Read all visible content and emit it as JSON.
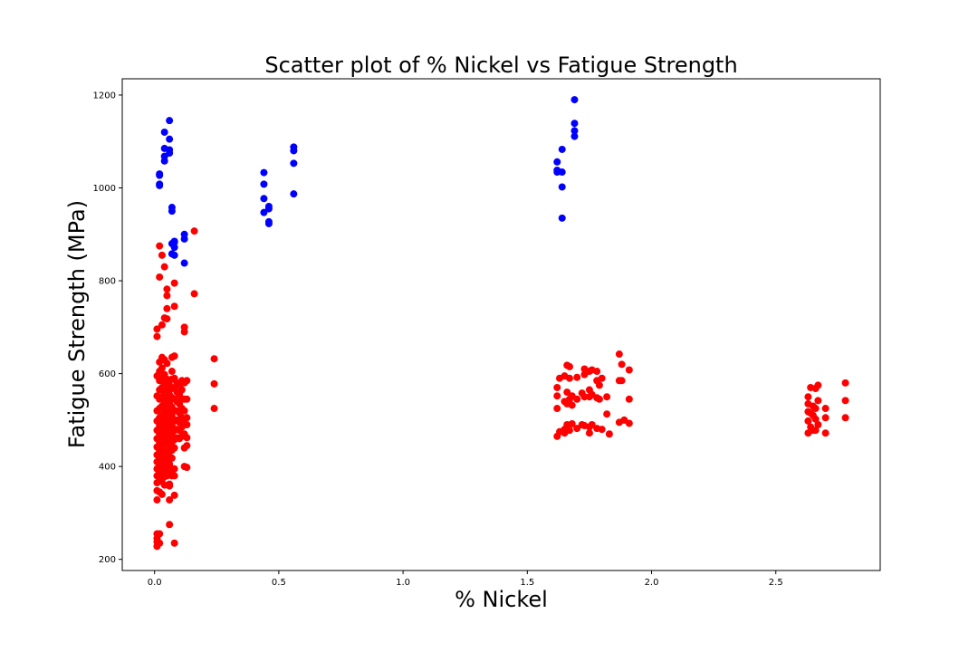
{
  "chart_data": {
    "type": "scatter",
    "title": "Scatter plot of % Nickel vs Fatigue Strength",
    "xlabel": "% Nickel",
    "ylabel": "Fatigue Strength (MPa)",
    "xlim": [
      -0.13,
      2.92
    ],
    "ylim": [
      176,
      1235
    ],
    "x_ticks": [
      "0.0",
      "0.5",
      "1.0",
      "1.5",
      "2.0",
      "2.5"
    ],
    "y_ticks": [
      "200",
      "400",
      "600",
      "800",
      "1000",
      "1200"
    ],
    "grid": false,
    "legend": "none",
    "series": [
      {
        "color": "#0000ff",
        "points": [
          [
            0.02,
            1030
          ],
          [
            0.02,
            1027
          ],
          [
            0.02,
            1008
          ],
          [
            0.02,
            1005
          ],
          [
            0.04,
            1120
          ],
          [
            0.04,
            1085
          ],
          [
            0.04,
            1068
          ],
          [
            0.04,
            1058
          ],
          [
            0.06,
            1145
          ],
          [
            0.06,
            1105
          ],
          [
            0.06,
            1082
          ],
          [
            0.06,
            1075
          ],
          [
            0.07,
            958
          ],
          [
            0.07,
            950
          ],
          [
            0.07,
            880
          ],
          [
            0.07,
            858
          ],
          [
            0.08,
            885
          ],
          [
            0.08,
            883
          ],
          [
            0.08,
            872
          ],
          [
            0.08,
            855
          ],
          [
            0.12,
            900
          ],
          [
            0.12,
            890
          ],
          [
            0.12,
            838
          ],
          [
            0.44,
            1033
          ],
          [
            0.44,
            1008
          ],
          [
            0.44,
            977
          ],
          [
            0.44,
            947
          ],
          [
            0.46,
            960
          ],
          [
            0.46,
            955
          ],
          [
            0.46,
            927
          ],
          [
            0.46,
            923
          ],
          [
            0.56,
            1088
          ],
          [
            0.56,
            1080
          ],
          [
            0.56,
            1053
          ],
          [
            0.56,
            987
          ],
          [
            1.62,
            1056
          ],
          [
            1.62,
            1038
          ],
          [
            1.62,
            1034
          ],
          [
            1.64,
            1083
          ],
          [
            1.64,
            1034
          ],
          [
            1.64,
            1002
          ],
          [
            1.64,
            935
          ],
          [
            1.69,
            1190
          ],
          [
            1.69,
            1139
          ],
          [
            1.69,
            1123
          ],
          [
            1.69,
            1111
          ]
        ]
      },
      {
        "color": "#ff0000",
        "points": [
          [
            0.01,
            696
          ],
          [
            0.01,
            680
          ],
          [
            0.01,
            595
          ],
          [
            0.01,
            552
          ],
          [
            0.01,
            520
          ],
          [
            0.01,
            498
          ],
          [
            0.01,
            478
          ],
          [
            0.01,
            460
          ],
          [
            0.01,
            442
          ],
          [
            0.01,
            425
          ],
          [
            0.01,
            410
          ],
          [
            0.01,
            395
          ],
          [
            0.01,
            380
          ],
          [
            0.01,
            365
          ],
          [
            0.01,
            348
          ],
          [
            0.01,
            328
          ],
          [
            0.01,
            255
          ],
          [
            0.01,
            245
          ],
          [
            0.01,
            238
          ],
          [
            0.01,
            228
          ],
          [
            0.02,
            875
          ],
          [
            0.02,
            808
          ],
          [
            0.02,
            625
          ],
          [
            0.02,
            605
          ],
          [
            0.02,
            585
          ],
          [
            0.02,
            565
          ],
          [
            0.02,
            545
          ],
          [
            0.02,
            525
          ],
          [
            0.02,
            505
          ],
          [
            0.02,
            488
          ],
          [
            0.02,
            470
          ],
          [
            0.02,
            452
          ],
          [
            0.02,
            435
          ],
          [
            0.02,
            418
          ],
          [
            0.02,
            400
          ],
          [
            0.02,
            383
          ],
          [
            0.02,
            368
          ],
          [
            0.02,
            345
          ],
          [
            0.02,
            255
          ],
          [
            0.02,
            235
          ],
          [
            0.03,
            855
          ],
          [
            0.03,
            705
          ],
          [
            0.03,
            635
          ],
          [
            0.03,
            612
          ],
          [
            0.03,
            590
          ],
          [
            0.03,
            570
          ],
          [
            0.03,
            550
          ],
          [
            0.03,
            530
          ],
          [
            0.03,
            510
          ],
          [
            0.03,
            492
          ],
          [
            0.03,
            475
          ],
          [
            0.03,
            458
          ],
          [
            0.03,
            440
          ],
          [
            0.03,
            422
          ],
          [
            0.03,
            405
          ],
          [
            0.03,
            388
          ],
          [
            0.03,
            372
          ],
          [
            0.03,
            340
          ],
          [
            0.04,
            830
          ],
          [
            0.04,
            720
          ],
          [
            0.04,
            630
          ],
          [
            0.04,
            598
          ],
          [
            0.04,
            578
          ],
          [
            0.04,
            558
          ],
          [
            0.04,
            538
          ],
          [
            0.04,
            518
          ],
          [
            0.04,
            500
          ],
          [
            0.04,
            482
          ],
          [
            0.04,
            465
          ],
          [
            0.04,
            448
          ],
          [
            0.04,
            430
          ],
          [
            0.04,
            412
          ],
          [
            0.04,
            395
          ],
          [
            0.04,
            378
          ],
          [
            0.04,
            360
          ],
          [
            0.05,
            782
          ],
          [
            0.05,
            768
          ],
          [
            0.05,
            740
          ],
          [
            0.05,
            718
          ],
          [
            0.05,
            622
          ],
          [
            0.05,
            588
          ],
          [
            0.05,
            566
          ],
          [
            0.05,
            545
          ],
          [
            0.05,
            525
          ],
          [
            0.05,
            505
          ],
          [
            0.05,
            486
          ],
          [
            0.05,
            468
          ],
          [
            0.05,
            450
          ],
          [
            0.05,
            432
          ],
          [
            0.05,
            415
          ],
          [
            0.05,
            398
          ],
          [
            0.05,
            380
          ],
          [
            0.06,
            575
          ],
          [
            0.06,
            555
          ],
          [
            0.06,
            535
          ],
          [
            0.06,
            515
          ],
          [
            0.06,
            495
          ],
          [
            0.06,
            475
          ],
          [
            0.06,
            458
          ],
          [
            0.06,
            440
          ],
          [
            0.06,
            422
          ],
          [
            0.06,
            405
          ],
          [
            0.06,
            388
          ],
          [
            0.06,
            362
          ],
          [
            0.06,
            358
          ],
          [
            0.06,
            328
          ],
          [
            0.06,
            275
          ],
          [
            0.07,
            635
          ],
          [
            0.07,
            605
          ],
          [
            0.07,
            588
          ],
          [
            0.07,
            568
          ],
          [
            0.07,
            548
          ],
          [
            0.07,
            528
          ],
          [
            0.07,
            508
          ],
          [
            0.07,
            488
          ],
          [
            0.07,
            470
          ],
          [
            0.07,
            452
          ],
          [
            0.07,
            435
          ],
          [
            0.07,
            418
          ],
          [
            0.07,
            395
          ],
          [
            0.07,
            380
          ],
          [
            0.08,
            795
          ],
          [
            0.08,
            745
          ],
          [
            0.08,
            638
          ],
          [
            0.08,
            590
          ],
          [
            0.08,
            570
          ],
          [
            0.08,
            545
          ],
          [
            0.08,
            520
          ],
          [
            0.08,
            498
          ],
          [
            0.08,
            478
          ],
          [
            0.08,
            458
          ],
          [
            0.08,
            440
          ],
          [
            0.08,
            395
          ],
          [
            0.08,
            380
          ],
          [
            0.08,
            338
          ],
          [
            0.08,
            235
          ],
          [
            0.09,
            580
          ],
          [
            0.09,
            560
          ],
          [
            0.09,
            540
          ],
          [
            0.09,
            520
          ],
          [
            0.09,
            500
          ],
          [
            0.09,
            480
          ],
          [
            0.09,
            462
          ],
          [
            0.1,
            575
          ],
          [
            0.1,
            555
          ],
          [
            0.1,
            535
          ],
          [
            0.1,
            515
          ],
          [
            0.1,
            495
          ],
          [
            0.1,
            478
          ],
          [
            0.1,
            460
          ],
          [
            0.11,
            585
          ],
          [
            0.11,
            565
          ],
          [
            0.11,
            545
          ],
          [
            0.11,
            525
          ],
          [
            0.11,
            505
          ],
          [
            0.11,
            485
          ],
          [
            0.11,
            465
          ],
          [
            0.12,
            700
          ],
          [
            0.12,
            690
          ],
          [
            0.12,
            580
          ],
          [
            0.12,
            545
          ],
          [
            0.12,
            520
          ],
          [
            0.12,
            500
          ],
          [
            0.12,
            470
          ],
          [
            0.12,
            440
          ],
          [
            0.12,
            400
          ],
          [
            0.13,
            585
          ],
          [
            0.13,
            545
          ],
          [
            0.13,
            505
          ],
          [
            0.13,
            490
          ],
          [
            0.13,
            462
          ],
          [
            0.13,
            445
          ],
          [
            0.13,
            398
          ],
          [
            0.16,
            907
          ],
          [
            0.16,
            772
          ],
          [
            0.24,
            632
          ],
          [
            0.24,
            578
          ],
          [
            0.24,
            525
          ],
          [
            1.62,
            570
          ],
          [
            1.62,
            552
          ],
          [
            1.62,
            525
          ],
          [
            1.62,
            465
          ],
          [
            1.63,
            590
          ],
          [
            1.63,
            475
          ],
          [
            1.65,
            595
          ],
          [
            1.65,
            540
          ],
          [
            1.65,
            480
          ],
          [
            1.65,
            472
          ],
          [
            1.66,
            618
          ],
          [
            1.66,
            560
          ],
          [
            1.66,
            535
          ],
          [
            1.66,
            490
          ],
          [
            1.67,
            615
          ],
          [
            1.67,
            590
          ],
          [
            1.67,
            545
          ],
          [
            1.67,
            478
          ],
          [
            1.68,
            552
          ],
          [
            1.68,
            532
          ],
          [
            1.68,
            492
          ],
          [
            1.7,
            592
          ],
          [
            1.7,
            545
          ],
          [
            1.7,
            482
          ],
          [
            1.72,
            558
          ],
          [
            1.72,
            490
          ],
          [
            1.73,
            610
          ],
          [
            1.73,
            598
          ],
          [
            1.73,
            550
          ],
          [
            1.73,
            488
          ],
          [
            1.75,
            605
          ],
          [
            1.75,
            565
          ],
          [
            1.75,
            550
          ],
          [
            1.75,
            485
          ],
          [
            1.75,
            472
          ],
          [
            1.76,
            608
          ],
          [
            1.76,
            555
          ],
          [
            1.76,
            490
          ],
          [
            1.78,
            605
          ],
          [
            1.78,
            585
          ],
          [
            1.78,
            548
          ],
          [
            1.78,
            482
          ],
          [
            1.79,
            575
          ],
          [
            1.79,
            545
          ],
          [
            1.8,
            590
          ],
          [
            1.8,
            480
          ],
          [
            1.82,
            550
          ],
          [
            1.82,
            513
          ],
          [
            1.83,
            470
          ],
          [
            1.87,
            642
          ],
          [
            1.87,
            585
          ],
          [
            1.87,
            495
          ],
          [
            1.88,
            620
          ],
          [
            1.88,
            585
          ],
          [
            1.89,
            500
          ],
          [
            1.91,
            608
          ],
          [
            1.91,
            545
          ],
          [
            1.91,
            493
          ],
          [
            2.63,
            550
          ],
          [
            2.63,
            535
          ],
          [
            2.63,
            518
          ],
          [
            2.63,
            498
          ],
          [
            2.63,
            472
          ],
          [
            2.64,
            570
          ],
          [
            2.64,
            515
          ],
          [
            2.64,
            485
          ],
          [
            2.65,
            530
          ],
          [
            2.65,
            510
          ],
          [
            2.65,
            478
          ],
          [
            2.66,
            568
          ],
          [
            2.66,
            525
          ],
          [
            2.66,
            502
          ],
          [
            2.66,
            478
          ],
          [
            2.67,
            575
          ],
          [
            2.67,
            542
          ],
          [
            2.67,
            490
          ],
          [
            2.7,
            525
          ],
          [
            2.7,
            505
          ],
          [
            2.7,
            472
          ],
          [
            2.78,
            580
          ],
          [
            2.78,
            542
          ],
          [
            2.78,
            505
          ]
        ]
      }
    ]
  }
}
